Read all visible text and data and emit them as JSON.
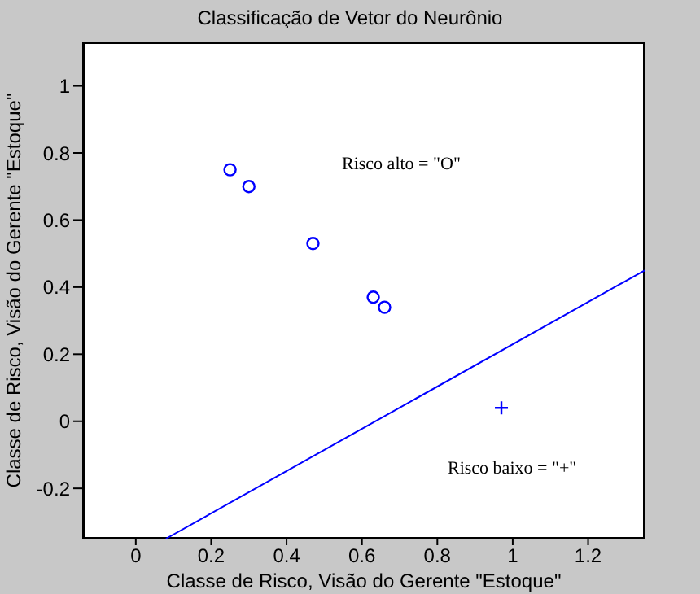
{
  "chart_data": {
    "type": "scatter",
    "title": "Classificação de Vetor do Neurônio",
    "xlabel": "Classe de Risco, Visão do Gerente \"Estoque\"",
    "ylabel": "Classe de Risco, Visão do Gerente \"Estoque\"",
    "annotations": [
      "Risco alto = \"O\"",
      "Risco baixo = \"+\""
    ],
    "series": [
      {
        "type": "scatter",
        "marker": "circle",
        "color": "#0000ff",
        "x": [
          0.25,
          0.3,
          0.47,
          0.63,
          0.66
        ],
        "values": [
          0.75,
          0.7,
          0.53,
          0.37,
          0.34
        ]
      },
      {
        "type": "scatter",
        "marker": "cross",
        "color": "#0000ff",
        "x": [
          0.97
        ],
        "values": [
          0.04
        ]
      },
      {
        "type": "line",
        "marker": "none",
        "color": "#0000ff",
        "x": [
          0.08,
          1.35
        ],
        "values": [
          -0.35,
          0.45
        ]
      }
    ],
    "xlim": [
      -0.14,
      1.35
    ],
    "xticks": [
      0,
      0.2,
      0.4,
      0.6,
      0.8,
      1,
      1.2
    ],
    "ylim": [
      -0.35,
      1.13
    ],
    "yticks": [
      -0.2,
      0,
      0.2,
      0.4,
      0.6,
      0.8,
      1
    ]
  }
}
